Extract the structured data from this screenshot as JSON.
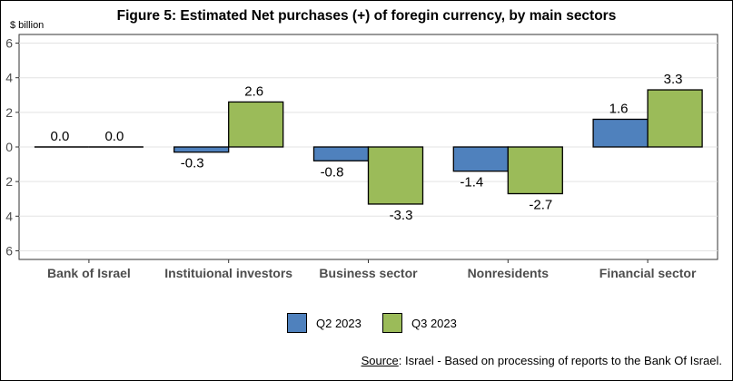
{
  "chart_data": {
    "type": "bar",
    "title": "Figure 5: Estimated Net purchases (+) of foregin currency, by main sectors",
    "ylabel": "$ billion",
    "ylim": [
      -6.5,
      6.5
    ],
    "yticks": [
      -6,
      -4,
      -2,
      0,
      2,
      4,
      6
    ],
    "ytick_labels": [
      "6",
      "4",
      "2",
      "0",
      "2",
      "4",
      "6"
    ],
    "grid": true,
    "legend_position": "bottom",
    "categories": [
      "Bank of Israel",
      "Instituional investors",
      "Business sector",
      "Nonresidents",
      "Financial sector"
    ],
    "series": [
      {
        "name": "Q2 2023",
        "color": "#4f81bd",
        "values": [
          0.0,
          -0.3,
          -0.8,
          -1.4,
          1.6
        ],
        "labels": [
          "0.0",
          "-0.3",
          "-0.8",
          "-1.4",
          "1.6"
        ]
      },
      {
        "name": "Q3 2023",
        "color": "#9bbb59",
        "values": [
          0.0,
          2.6,
          -3.3,
          -2.7,
          3.3
        ],
        "labels": [
          "0.0",
          "2.6",
          "-3.3",
          "-2.7",
          "3.3"
        ]
      }
    ]
  },
  "source": {
    "label": "Source",
    "text": ": Israel -  Based on processing of reports to the Bank Of Israel."
  }
}
